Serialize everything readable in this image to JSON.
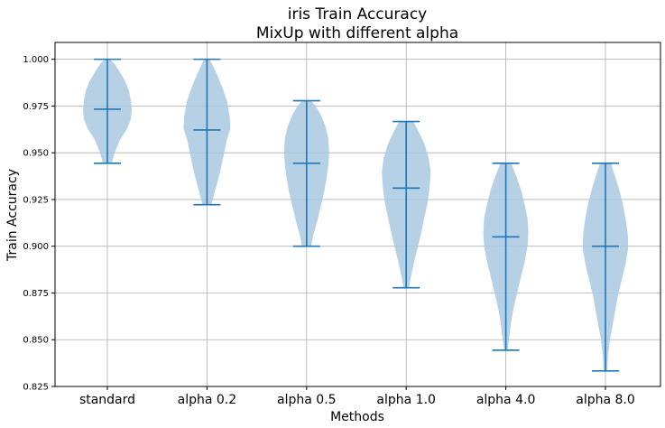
{
  "chart_data": {
    "type": "violin",
    "title": "iris Train Accuracy",
    "subtitle": "MixUp with different alpha",
    "xlabel": "Methods",
    "ylabel": "Train Accuracy",
    "ylim": [
      0.825,
      1.009
    ],
    "y_ticks": [
      "0.825",
      "0.850",
      "0.875",
      "0.900",
      "0.925",
      "0.950",
      "0.975",
      "1.000"
    ],
    "grid": true,
    "colors": {
      "body": "#a9c8e2",
      "line": "#1f77b4",
      "grid": "#b0b0b0"
    },
    "categories": [
      "standard",
      "alpha 0.2",
      "alpha 0.5",
      "alpha 1.0",
      "alpha 4.0",
      "alpha 8.0"
    ],
    "violins": [
      {
        "min": 0.9444,
        "median": 0.9733,
        "max": 1.0,
        "profile": [
          [
            0.9444,
            5
          ],
          [
            0.95,
            8
          ],
          [
            0.957,
            14
          ],
          [
            0.963,
            22
          ],
          [
            0.968,
            26
          ],
          [
            0.973,
            27
          ],
          [
            0.978,
            26
          ],
          [
            0.983,
            24
          ],
          [
            0.988,
            20
          ],
          [
            0.993,
            14
          ],
          [
            0.9975,
            8
          ],
          [
            1.0,
            3
          ]
        ]
      },
      {
        "min": 0.9222,
        "median": 0.9622,
        "max": 1.0,
        "profile": [
          [
            0.9222,
            5
          ],
          [
            0.928,
            8
          ],
          [
            0.935,
            12
          ],
          [
            0.943,
            16
          ],
          [
            0.95,
            19
          ],
          [
            0.957,
            22
          ],
          [
            0.963,
            26
          ],
          [
            0.97,
            25
          ],
          [
            0.978,
            22
          ],
          [
            0.985,
            17
          ],
          [
            0.992,
            11
          ],
          [
            0.997,
            6
          ],
          [
            1.0,
            3
          ]
        ]
      },
      {
        "min": 0.9,
        "median": 0.9444,
        "max": 0.9778,
        "profile": [
          [
            0.9,
            5
          ],
          [
            0.905,
            7
          ],
          [
            0.912,
            11
          ],
          [
            0.92,
            15
          ],
          [
            0.928,
            19
          ],
          [
            0.936,
            22
          ],
          [
            0.943,
            24
          ],
          [
            0.95,
            25
          ],
          [
            0.958,
            24
          ],
          [
            0.964,
            21
          ],
          [
            0.97,
            16
          ],
          [
            0.975,
            10
          ],
          [
            0.9778,
            5
          ]
        ]
      },
      {
        "min": 0.8778,
        "median": 0.9311,
        "max": 0.9667,
        "profile": [
          [
            0.8778,
            3
          ],
          [
            0.883,
            5
          ],
          [
            0.89,
            8
          ],
          [
            0.898,
            12
          ],
          [
            0.906,
            16
          ],
          [
            0.915,
            20
          ],
          [
            0.924,
            24
          ],
          [
            0.932,
            26
          ],
          [
            0.94,
            27
          ],
          [
            0.947,
            25
          ],
          [
            0.955,
            20
          ],
          [
            0.961,
            14
          ],
          [
            0.9667,
            8
          ]
        ]
      },
      {
        "min": 0.8444,
        "median": 0.905,
        "max": 0.9444,
        "profile": [
          [
            0.8444,
            2
          ],
          [
            0.852,
            4
          ],
          [
            0.86,
            6
          ],
          [
            0.868,
            9
          ],
          [
            0.876,
            13
          ],
          [
            0.884,
            17
          ],
          [
            0.892,
            21
          ],
          [
            0.9,
            24
          ],
          [
            0.907,
            25
          ],
          [
            0.915,
            24
          ],
          [
            0.922,
            21
          ],
          [
            0.93,
            17
          ],
          [
            0.937,
            12
          ],
          [
            0.9444,
            6
          ]
        ]
      },
      {
        "min": 0.8333,
        "median": 0.9,
        "max": 0.9444,
        "profile": [
          [
            0.8333,
            2
          ],
          [
            0.842,
            3
          ],
          [
            0.85,
            5
          ],
          [
            0.858,
            8
          ],
          [
            0.866,
            11
          ],
          [
            0.874,
            14
          ],
          [
            0.882,
            18
          ],
          [
            0.89,
            22
          ],
          [
            0.898,
            25
          ],
          [
            0.905,
            25
          ],
          [
            0.913,
            23
          ],
          [
            0.921,
            20
          ],
          [
            0.929,
            16
          ],
          [
            0.937,
            11
          ],
          [
            0.9444,
            6
          ]
        ]
      }
    ]
  }
}
